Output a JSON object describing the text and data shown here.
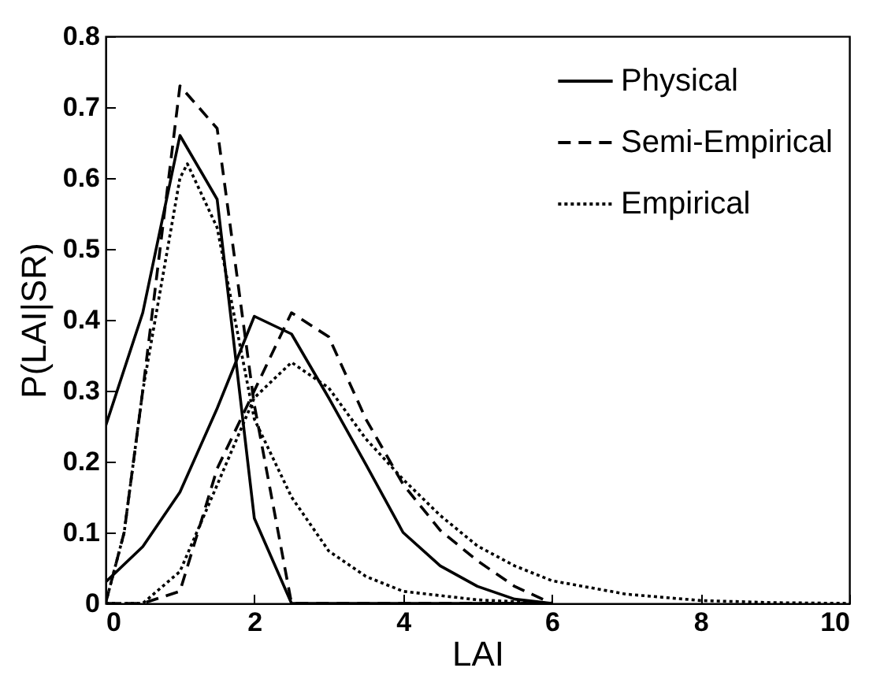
{
  "chart_data": {
    "type": "line",
    "xlabel": "LAI",
    "ylabel": "P(LAI|SR)",
    "xlim": [
      0,
      10
    ],
    "ylim": [
      0,
      0.8
    ],
    "xticks": [
      0,
      2,
      4,
      6,
      8,
      10
    ],
    "yticks": [
      0,
      0.1,
      0.2,
      0.3,
      0.4,
      0.5,
      0.6,
      0.7,
      0.8
    ],
    "grid": false,
    "legend": "top right",
    "marker": "none",
    "series": [
      {
        "name": "Physical",
        "color": "#000000",
        "line_style": "solid",
        "x": [
          0,
          0.5,
          1,
          1.5,
          2,
          2.5,
          3,
          4,
          6
        ],
        "values": [
          0.25,
          0.41,
          0.66,
          0.57,
          0.12,
          0,
          0,
          0,
          0
        ]
      },
      {
        "name": "Semi-Empirical",
        "color": "#000000",
        "line_style": "dashed",
        "x": [
          0,
          0.25,
          0.5,
          1,
          1.5,
          2,
          2.5,
          3,
          4,
          6
        ],
        "values": [
          0,
          0.1,
          0.3,
          0.73,
          0.67,
          0.28,
          0,
          0,
          0,
          0
        ]
      },
      {
        "name": "Empirical",
        "color": "#000000",
        "line_style": "dotted",
        "x": [
          0,
          0.25,
          0.5,
          1,
          1.1,
          1.5,
          2,
          2.5,
          3,
          3.5,
          4,
          5,
          6
        ],
        "values": [
          0,
          0.1,
          0.3,
          0.6,
          0.62,
          0.53,
          0.26,
          0.15,
          0.074,
          0.038,
          0.017,
          0.005,
          0
        ]
      },
      {
        "color": "#000000",
        "line_style": "solid",
        "x": [
          0,
          0.5,
          1,
          1.5,
          2,
          2.5,
          3,
          3.5,
          4,
          4.5,
          5,
          5.5,
          6
        ],
        "values": [
          0.03,
          0.08,
          0.157,
          0.275,
          0.405,
          0.38,
          0.29,
          0.196,
          0.1,
          0.053,
          0.024,
          0.006,
          0
        ]
      },
      {
        "color": "#000000",
        "line_style": "dashed",
        "x": [
          0,
          0.5,
          1,
          1.5,
          2,
          2.5,
          3,
          3.5,
          4,
          4.5,
          5,
          5.5,
          6
        ],
        "values": [
          0,
          0,
          0.017,
          0.19,
          0.3,
          0.41,
          0.376,
          0.26,
          0.168,
          0.103,
          0.06,
          0.024,
          0
        ]
      },
      {
        "color": "#000000",
        "line_style": "dotted",
        "x": [
          0,
          0.5,
          1,
          1.5,
          2,
          2.5,
          3,
          3.5,
          4,
          4.5,
          5,
          5.5,
          6,
          7,
          8,
          9,
          10
        ],
        "values": [
          0,
          0,
          0.045,
          0.167,
          0.29,
          0.34,
          0.304,
          0.232,
          0.175,
          0.124,
          0.081,
          0.053,
          0.032,
          0.013,
          0.004,
          0.001,
          0
        ]
      }
    ]
  }
}
